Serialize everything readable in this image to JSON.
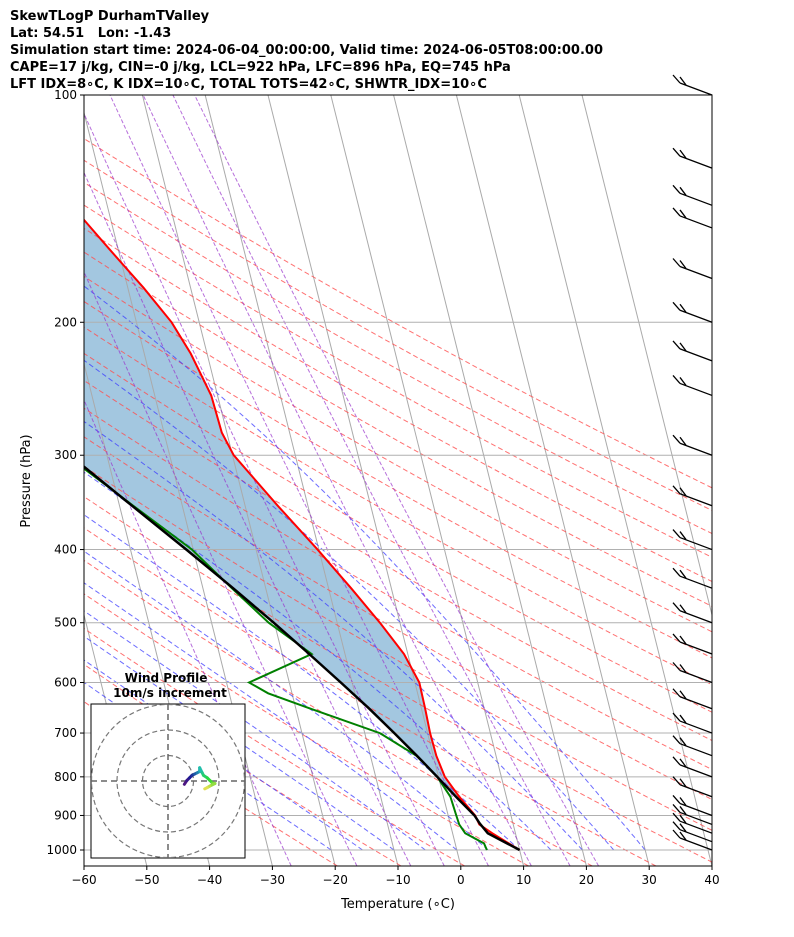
{
  "header": {
    "line1": "SkewTLogP DurhamTValley",
    "line2": "Lat: 54.51   Lon: -1.43",
    "line3": "Simulation start time: 2024-06-04_00:00:00, Valid time: 2024-06-05T08:00:00.00",
    "line4": "CAPE=17 j/kg, CIN=-0 j/kg, LCL=922 hPa, LFC=896 hPa, EQ=745 hPa",
    "line5": "LFT IDX=8∘C, K IDX=10∘C, TOTAL TOTS=42∘C, SHWTR_IDX=10∘C"
  },
  "chart_data": {
    "type": "line",
    "title": "SkewTLogP DurhamTValley",
    "xlabel": "Temperature (∘C)",
    "ylabel": "Pressure (hPa)",
    "xlim": [
      -60,
      40
    ],
    "ylim": [
      1050,
      100
    ],
    "yscale": "log",
    "xticks": [
      -60,
      -50,
      -40,
      -30,
      -20,
      -10,
      0,
      10,
      20,
      30,
      40
    ],
    "xtick_labels": [
      "−60",
      "−50",
      "−40",
      "−30",
      "−20",
      "−10",
      "0",
      "10",
      "20",
      "30",
      "40"
    ],
    "yticks": [
      1000,
      900,
      800,
      700,
      600,
      500,
      400,
      300,
      200,
      100
    ],
    "ytick_labels": [
      "1000",
      "900",
      "800",
      "700",
      "600",
      "500",
      "400",
      "300",
      "200",
      "100"
    ],
    "grid": true,
    "colors": {
      "temperature": "#ff0000",
      "dewpoint": "#008000",
      "parcel": "#000000",
      "cape_fill": "#a3c7e0",
      "dry_adiabat": "#ff4d4d",
      "moist_adiabat": "#3b3bff",
      "mixing_ratio": "#9933cc",
      "isotherm": "#888888"
    },
    "series": [
      {
        "key": "temperature",
        "pressure": [
          1000,
          950,
          925,
          900,
          850,
          800,
          750,
          700,
          650,
          600,
          550,
          500,
          450,
          400,
          350,
          300,
          280,
          250,
          220,
          200,
          180,
          160,
          140,
          120,
          110,
          100
        ],
        "temp": [
          10.0,
          6.3,
          4.6,
          4.3,
          2.5,
          1.0,
          0.5,
          0.4,
          0.6,
          0.7,
          -0.6,
          -3.2,
          -6.4,
          -10.2,
          -14.8,
          -19.8,
          -20.8,
          -21.0,
          -22.6,
          -24.4,
          -27.5,
          -31.4,
          -35.7,
          -41.1,
          -44.3,
          -48.1
        ]
      },
      {
        "key": "dewpoint",
        "pressure": [
          1000,
          980,
          950,
          925,
          900,
          850,
          800,
          750,
          700,
          650,
          620,
          600,
          550,
          500,
          450,
          400,
          350,
          300,
          280,
          250,
          220,
          200,
          180,
          160,
          140,
          120,
          100
        ],
        "temp": [
          4.8,
          4.6,
          2.0,
          1.4,
          1.3,
          1.1,
          -0.2,
          -2.7,
          -7.6,
          -17.6,
          -23.8,
          -26.4,
          -15.3,
          -20.9,
          -25.4,
          -30.2,
          -37.8,
          -46.5,
          -48.6,
          -53.8,
          -62.9,
          -65.1,
          -65.3,
          -66.6,
          -68.8,
          -71.4,
          -76.0
        ]
      },
      {
        "key": "parcel",
        "pressure": [
          1000,
          950,
          922,
          900,
          850,
          800,
          750,
          700,
          650,
          600,
          550,
          500,
          450,
          400,
          350,
          300,
          250,
          200,
          150,
          100
        ],
        "temp": [
          10.0,
          5.6,
          4.7,
          4.2,
          2.0,
          -0.2,
          -2.6,
          -5.3,
          -8.3,
          -11.8,
          -15.7,
          -20.1,
          -25.2,
          -31.1,
          -38.0,
          -45.9,
          -55.0,
          -66.0,
          -79.8,
          -99.0
        ]
      }
    ],
    "wind_barbs": {
      "pressure": [
        1000,
        975,
        950,
        925,
        900,
        850,
        800,
        750,
        700,
        650,
        600,
        550,
        500,
        450,
        400,
        350,
        300,
        250,
        225,
        200,
        175,
        150,
        140,
        125,
        100
      ]
    },
    "hodograph": {
      "title": "Wind Profile",
      "subtitle": "10m/s increment",
      "rings_ms": [
        10,
        20,
        30
      ],
      "trace": [
        [
          -3,
          0.5
        ],
        [
          -2,
          -1
        ],
        [
          -1,
          -2
        ],
        [
          0,
          -3
        ],
        [
          1,
          -3.5
        ],
        [
          2,
          -4
        ],
        [
          3,
          -4.5
        ],
        [
          3,
          -6
        ],
        [
          4,
          -4
        ],
        [
          4.5,
          -3
        ],
        [
          6,
          -2
        ],
        [
          7,
          -1
        ],
        [
          8,
          0
        ],
        [
          9,
          0.2
        ],
        [
          7,
          1.2
        ],
        [
          6,
          1.8
        ],
        [
          5,
          2.3
        ]
      ]
    },
    "mixing_ratio_gkg": [
      0.4,
      1,
      2,
      3,
      5,
      8,
      12,
      16
    ],
    "dry_adiabats_K": [
      250,
      260,
      270,
      280,
      290,
      300,
      310,
      320,
      330,
      340,
      350,
      360,
      370,
      380,
      390,
      400,
      410,
      420,
      430,
      440,
      450
    ],
    "moist_adiabats_C": [
      -20,
      -15,
      -10,
      -5,
      0,
      5,
      10,
      15,
      20,
      25,
      30
    ]
  }
}
